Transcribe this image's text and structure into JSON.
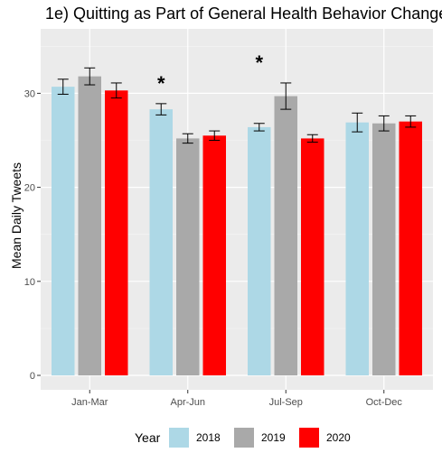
{
  "chart_data": {
    "type": "bar",
    "title": "1e) Quitting as Part of General Health Behavior Change",
    "xlabel": "",
    "ylabel": "Mean Daily Tweets",
    "categories": [
      "Jan-Mar",
      "Apr-Jun",
      "Jul-Sep",
      "Oct-Dec"
    ],
    "ylim": [
      0,
      36
    ],
    "yticks": [
      "0",
      "10",
      "20",
      "30"
    ],
    "legend_title": "Year",
    "legend_position": "bottom",
    "grid": true,
    "series": [
      {
        "name": "2018",
        "color": "#add8e6",
        "values": [
          30.7,
          28.3,
          26.4,
          26.9
        ],
        "error": [
          0.8,
          0.6,
          0.4,
          1.0
        ]
      },
      {
        "name": "2019",
        "color": "#a9a9a9",
        "values": [
          31.8,
          25.2,
          29.7,
          26.8
        ],
        "error": [
          0.9,
          0.5,
          1.4,
          0.8
        ]
      },
      {
        "name": "2020",
        "color": "#ff0000",
        "values": [
          30.3,
          25.5,
          25.2,
          27.0
        ],
        "error": [
          0.8,
          0.5,
          0.4,
          0.6
        ]
      }
    ],
    "annotations": [
      {
        "category": "Apr-Jun",
        "text": "*"
      },
      {
        "category": "Jul-Sep",
        "text": "*"
      }
    ]
  }
}
